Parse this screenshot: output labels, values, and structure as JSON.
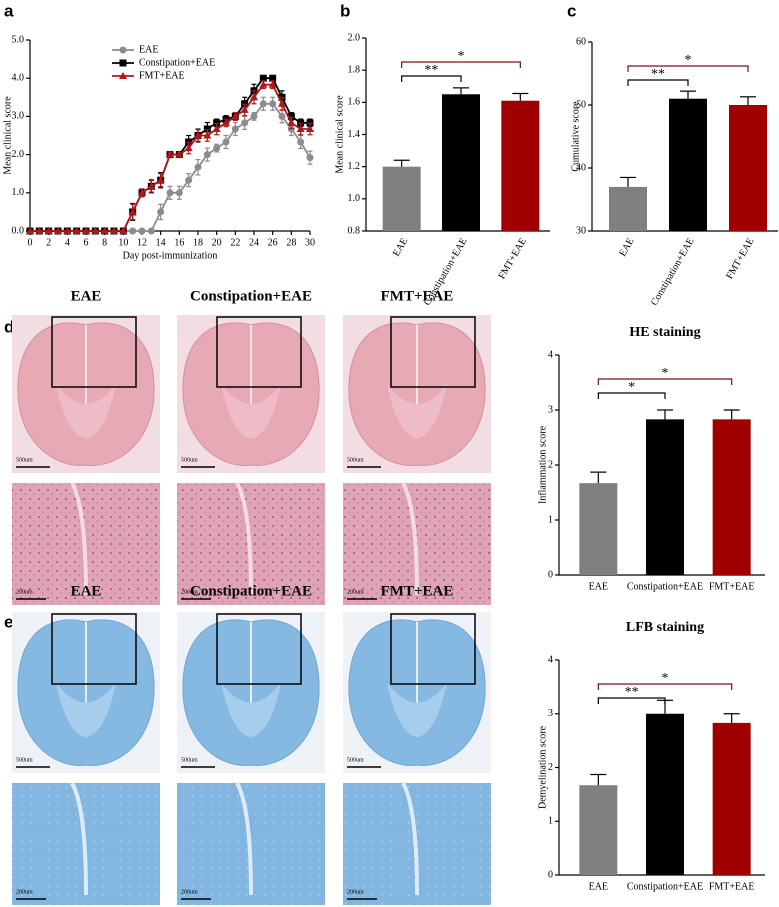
{
  "chart_data": [
    {
      "type": "line",
      "panel": "a",
      "x_label": "Day post-immunization",
      "y_label": "Mean clinical score",
      "x": [
        0,
        1,
        2,
        3,
        4,
        5,
        6,
        7,
        8,
        9,
        10,
        11,
        12,
        13,
        14,
        15,
        16,
        17,
        18,
        19,
        20,
        21,
        22,
        23,
        24,
        25,
        26,
        27,
        28,
        29,
        30
      ],
      "xlim": [
        0,
        30
      ],
      "xticks": [
        0,
        2,
        4,
        6,
        8,
        10,
        12,
        14,
        16,
        18,
        20,
        22,
        24,
        26,
        28,
        30
      ],
      "ylim": [
        0,
        5
      ],
      "yticks": [
        {
          "value": 0,
          "label": "0.0"
        },
        {
          "value": 1,
          "label": "1.0"
        },
        {
          "value": 2,
          "label": "2.0"
        },
        {
          "value": 3,
          "label": "3.0"
        },
        {
          "value": 4,
          "label": "4.0"
        },
        {
          "value": 5,
          "label": "5.0"
        }
      ],
      "series": [
        {
          "name": "EAE",
          "color": "#8c8c8c",
          "marker": "circle",
          "values": [
            0,
            0,
            0,
            0,
            0,
            0,
            0,
            0,
            0,
            0,
            0,
            0,
            0,
            0,
            0.5,
            1.0,
            1.0,
            1.33,
            1.67,
            2.0,
            2.17,
            2.33,
            2.67,
            2.83,
            3.0,
            3.33,
            3.33,
            3.0,
            2.67,
            2.33,
            1.92
          ],
          "errors": [
            0,
            0,
            0,
            0,
            0,
            0,
            0,
            0,
            0,
            0,
            0,
            0,
            0,
            0,
            0.2,
            0.17,
            0.17,
            0.17,
            0.2,
            0.17,
            0.1,
            0.17,
            0.17,
            0.17,
            0.1,
            0.17,
            0.17,
            0.17,
            0.17,
            0.17,
            0.17
          ]
        },
        {
          "name": "Constipation+EAE",
          "color": "#000000",
          "marker": "square",
          "values": [
            0,
            0,
            0,
            0,
            0,
            0,
            0,
            0,
            0,
            0,
            0,
            0.5,
            1.0,
            1.17,
            1.33,
            2.0,
            2.0,
            2.33,
            2.5,
            2.67,
            2.83,
            2.92,
            3.0,
            3.33,
            3.67,
            4.0,
            4.0,
            3.5,
            3.0,
            2.83,
            2.83
          ],
          "errors": [
            0,
            0,
            0,
            0,
            0,
            0,
            0,
            0,
            0,
            0,
            0,
            0.22,
            0.1,
            0.17,
            0.2,
            0.05,
            0.05,
            0.17,
            0.17,
            0.17,
            0.1,
            0.1,
            0.1,
            0.17,
            0.17,
            0.05,
            0.05,
            0.17,
            0.1,
            0.1,
            0.1
          ]
        },
        {
          "name": "FMT+EAE",
          "color": "#b01818",
          "marker": "triangle",
          "values": [
            0,
            0,
            0,
            0,
            0,
            0,
            0,
            0,
            0,
            0,
            0,
            0.5,
            1.0,
            1.17,
            1.33,
            2.0,
            2.0,
            2.17,
            2.5,
            2.5,
            2.67,
            2.83,
            3.0,
            3.17,
            3.5,
            3.83,
            3.83,
            3.33,
            2.83,
            2.67,
            2.67
          ],
          "errors": [
            0,
            0,
            0,
            0,
            0,
            0,
            0,
            0,
            0,
            0,
            0,
            0.2,
            0.1,
            0.15,
            0.17,
            0.05,
            0.05,
            0.15,
            0.15,
            0.15,
            0.15,
            0.1,
            0.1,
            0.15,
            0.17,
            0.1,
            0.1,
            0.17,
            0.15,
            0.15,
            0.15
          ]
        }
      ]
    },
    {
      "type": "bar",
      "panel": "b",
      "y_label": "Mean clinical score",
      "categories": [
        "EAE",
        "Constipation+EAE",
        "FMT+EAE"
      ],
      "colors": [
        "#808080",
        "#000000",
        "#a00000"
      ],
      "values": [
        1.2,
        1.65,
        1.61
      ],
      "errors": [
        0.04,
        0.04,
        0.045
      ],
      "ylim": [
        0.8,
        2.0
      ],
      "yticks": [
        0.8,
        {
          "value": 1,
          "label": "1.0"
        },
        1.2,
        1.4,
        1.6,
        1.8,
        {
          "value": 2,
          "label": "2.0"
        }
      ],
      "significance": [
        {
          "from": 0,
          "to": 1,
          "label": "**"
        },
        {
          "from": 0,
          "to": 2,
          "label": "*"
        }
      ]
    },
    {
      "type": "bar",
      "panel": "c",
      "y_label": "Cumulative score",
      "categories": [
        "EAE",
        "Constipation+EAE",
        "FMT+EAE"
      ],
      "colors": [
        "#808080",
        "#000000",
        "#a00000"
      ],
      "values": [
        37,
        51,
        50
      ],
      "errors": [
        1.5,
        1.2,
        1.3
      ],
      "ylim": [
        30,
        60
      ],
      "yticks": [
        30,
        40,
        50,
        60
      ],
      "significance": [
        {
          "from": 0,
          "to": 1,
          "label": "**"
        },
        {
          "from": 0,
          "to": 2,
          "label": "*"
        }
      ]
    },
    {
      "type": "bar",
      "title": "HE staining",
      "y_label": "Inflammation score",
      "categories": [
        "EAE",
        "Constipation+EAE",
        "FMT+EAE"
      ],
      "colors": [
        "#808080",
        "#000000",
        "#a00000"
      ],
      "values": [
        1.67,
        2.83,
        2.83
      ],
      "errors": [
        0.2,
        0.17,
        0.17
      ],
      "ylim": [
        0,
        4
      ],
      "yticks": [
        0,
        1,
        2,
        3,
        4
      ],
      "significance": [
        {
          "from": 0,
          "to": 1,
          "label": "*"
        },
        {
          "from": 0,
          "to": 2,
          "label": "*"
        }
      ]
    },
    {
      "type": "bar",
      "title": "LFB staining",
      "y_label": "Demyelination score",
      "categories": [
        "EAE",
        "Constipation+EAE",
        "FMT+EAE"
      ],
      "colors": [
        "#808080",
        "#000000",
        "#a00000"
      ],
      "values": [
        1.67,
        3.0,
        2.83
      ],
      "errors": [
        0.2,
        0.25,
        0.17
      ],
      "ylim": [
        0,
        4
      ],
      "yticks": [
        0,
        1,
        2,
        3,
        4
      ],
      "significance": [
        {
          "from": 0,
          "to": 1,
          "label": "**"
        },
        {
          "from": 0,
          "to": 2,
          "label": "*"
        }
      ]
    }
  ],
  "histology": [
    {
      "panel": "d",
      "stain": "HE",
      "columns": [
        "EAE",
        "Constipation+EAE",
        "FMT+EAE"
      ],
      "scale_bars": [
        "500um",
        "200um"
      ]
    },
    {
      "panel": "e",
      "stain": "LFB",
      "columns": [
        "EAE",
        "Constipation+EAE",
        "FMT+EAE"
      ],
      "scale_bars": [
        "500um",
        "200um"
      ]
    }
  ]
}
